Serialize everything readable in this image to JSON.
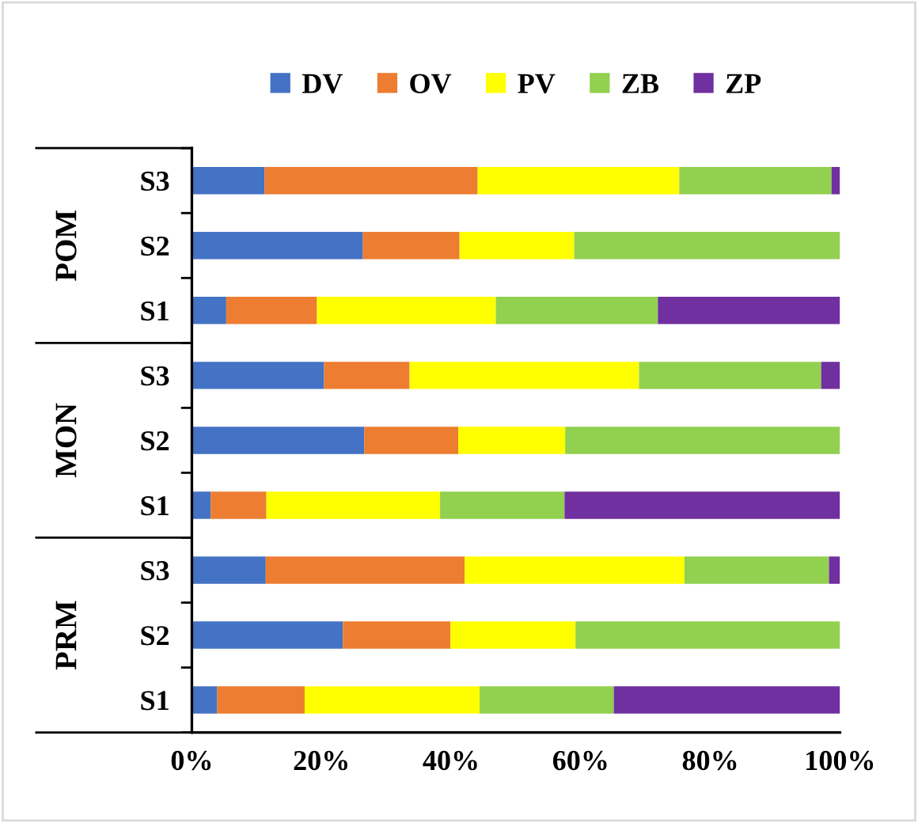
{
  "chart_data": {
    "type": "bar",
    "orientation": "horizontal",
    "stacked": true,
    "categories": [
      "S3",
      "S2",
      "S1",
      "S3",
      "S2",
      "S1",
      "S3",
      "S2",
      "S1"
    ],
    "annotations": [
      "POM",
      "MON",
      "PRM"
    ],
    "series": [
      {
        "name": "DV",
        "color": "#4472c4",
        "values": [
          11.2,
          26.4,
          5.3,
          20.4,
          26.6,
          2.9,
          11.4,
          23.3,
          3.9
        ]
      },
      {
        "name": "OV",
        "color": "#ed7d31",
        "values": [
          32.9,
          14.9,
          14.0,
          13.2,
          14.5,
          8.6,
          30.7,
          16.6,
          13.5
        ]
      },
      {
        "name": "PV",
        "color": "#ffff00",
        "values": [
          31.1,
          17.7,
          27.6,
          35.4,
          16.5,
          26.8,
          33.9,
          19.3,
          27.0
        ]
      },
      {
        "name": "ZB",
        "color": "#92d050",
        "values": [
          23.5,
          41.0,
          25.0,
          28.1,
          42.4,
          19.2,
          22.3,
          40.8,
          20.7
        ]
      },
      {
        "name": "ZP",
        "color": "#7030a0",
        "values": [
          1.3,
          0,
          28.1,
          2.9,
          0,
          42.5,
          1.7,
          0,
          34.9
        ]
      }
    ],
    "xlim": [
      0,
      100
    ],
    "xticks": [
      {
        "value": 0,
        "label": "0%"
      },
      {
        "value": 20,
        "label": "20%"
      },
      {
        "value": 40,
        "label": "40%"
      },
      {
        "value": 60,
        "label": "60%"
      },
      {
        "value": 80,
        "label": "80%"
      },
      {
        "value": 100,
        "label": "100%"
      }
    ],
    "grid": false,
    "legend": "top"
  }
}
